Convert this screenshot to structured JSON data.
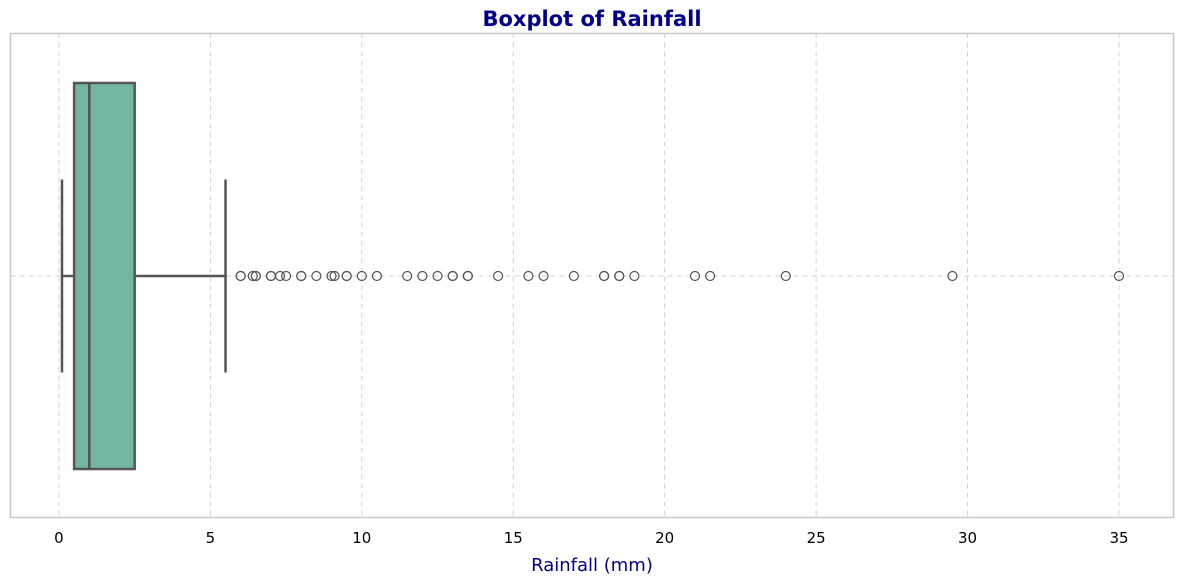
{
  "chart_data": {
    "type": "boxplot",
    "title": "Boxplot of Rainfall",
    "xlabel": "Rainfall (mm)",
    "xlim": [
      -1.6,
      36.8
    ],
    "xticks": [
      0,
      5,
      10,
      15,
      20,
      25,
      30,
      35
    ],
    "grid": true,
    "orientation": "horizontal",
    "box": {
      "whisker_low": 0.1,
      "q1": 0.5,
      "median": 1.0,
      "q3": 2.5,
      "whisker_high": 5.5,
      "color": "#72b6a1",
      "edge_color": "#555555"
    },
    "outliers": [
      6.0,
      6.0,
      6.4,
      6.5,
      6.5,
      7.0,
      7.0,
      7.3,
      7.5,
      8.0,
      8.0,
      8.5,
      9.0,
      9.1,
      9.5,
      9.5,
      10.0,
      10.5,
      11.5,
      12.0,
      12.5,
      13.0,
      13.0,
      13.5,
      13.5,
      14.5,
      15.5,
      16.0,
      17.0,
      18.0,
      18.0,
      18.5,
      18.5,
      19.0,
      21.0,
      21.5,
      24.0,
      29.5,
      35.0
    ]
  }
}
